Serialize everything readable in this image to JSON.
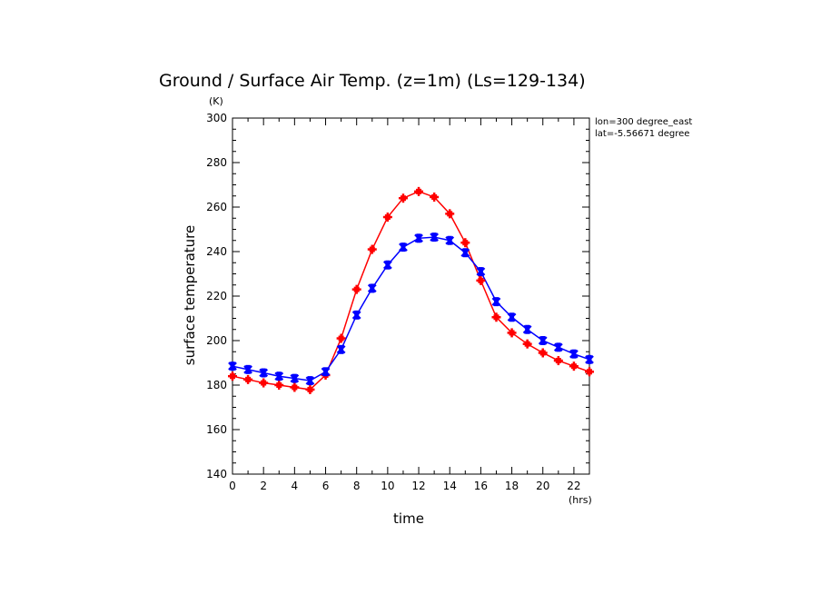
{
  "chart_data": {
    "type": "line",
    "title": "Ground / Surface Air Temp. (z=1m) (Ls=129-134)",
    "ylabel": "surface temperature",
    "xlabel": "time",
    "y_unit": "(K)",
    "x_unit": "(hrs)",
    "info": [
      "lon=300 degree_east",
      "lat=-5.56671 degree"
    ],
    "xlim": [
      0,
      23
    ],
    "ylim": [
      140,
      300
    ],
    "xticks": [
      0,
      2,
      4,
      6,
      8,
      10,
      12,
      14,
      16,
      18,
      20,
      22
    ],
    "yticks": [
      140,
      160,
      180,
      200,
      220,
      240,
      260,
      280,
      300
    ],
    "x": [
      0,
      1,
      2,
      3,
      4,
      5,
      6,
      7,
      8,
      9,
      10,
      11,
      12,
      13,
      14,
      15,
      16,
      17,
      18,
      19,
      20,
      21,
      22,
      23
    ],
    "series": [
      {
        "color": "#ff0000",
        "marker": "plus",
        "values": [
          184,
          182.5,
          181,
          180,
          179,
          178,
          184.5,
          201,
          223,
          241,
          255.5,
          264,
          267,
          264.5,
          257,
          244,
          227,
          210.5,
          203.5,
          198.5,
          194.5,
          191,
          188.5,
          186
        ]
      },
      {
        "color": "#0000ff",
        "marker": "cross",
        "values": [
          188.5,
          187,
          185.5,
          184,
          183,
          182,
          186,
          196,
          211.5,
          223.5,
          234,
          242,
          246,
          246.5,
          245,
          239.5,
          231,
          217.5,
          210.5,
          205,
          200,
          197,
          194,
          191.5
        ]
      }
    ]
  }
}
